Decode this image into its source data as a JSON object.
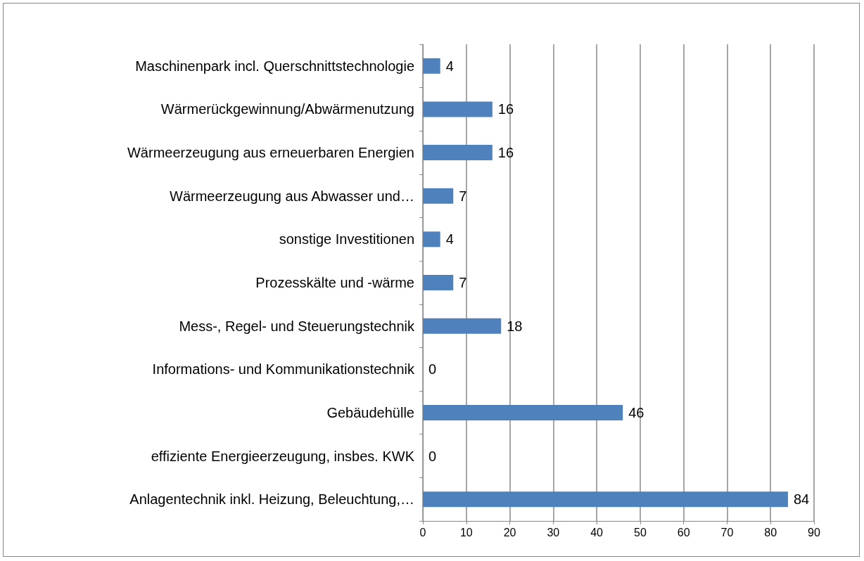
{
  "chart_data": {
    "type": "bar",
    "orientation": "horizontal",
    "categories": [
      "Maschinenpark incl. Querschnittstechnologie",
      "Wärmerückgewinnung/Abwärmenutzung",
      "Wärmeerzeugung aus erneuerbaren Energien",
      "Wärmeerzeugung aus Abwasser und…",
      "sonstige Investitionen",
      "Prozesskälte und -wärme",
      "Mess-, Regel- und Steuerungstechnik",
      "Informations- und Kommunikationstechnik",
      "Gebäudehülle",
      "effiziente Energieerzeugung, insbes. KWK",
      "Anlagentechnik inkl. Heizung, Beleuchtung,…"
    ],
    "values": [
      4,
      16,
      16,
      7,
      4,
      7,
      18,
      0,
      46,
      0,
      84
    ],
    "color": "#4f81bd",
    "xlim": [
      0,
      90
    ],
    "xticks": [
      0,
      10,
      20,
      30,
      40,
      50,
      60,
      70,
      80,
      90
    ],
    "grid": "x",
    "data_labels": true
  }
}
